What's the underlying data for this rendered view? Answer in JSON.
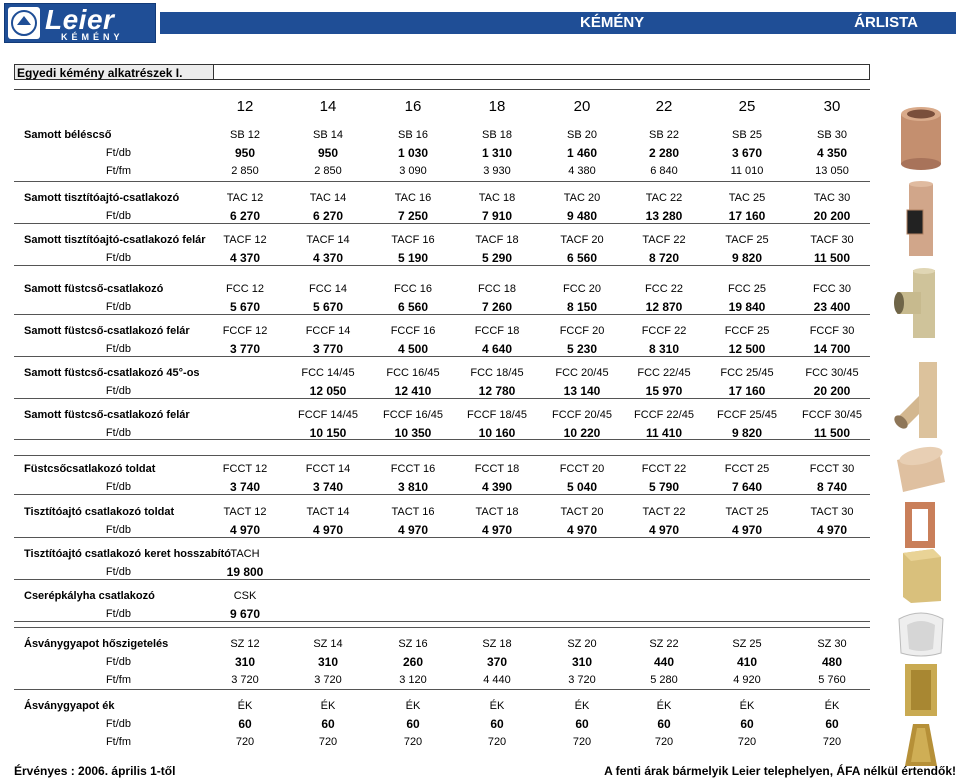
{
  "header": {
    "logo_text": "Leier",
    "logo_sub": "KÉMÉNY",
    "center_title": "KÉMÉNY",
    "right_title": "ÁRLISTA"
  },
  "section_title": "Egyedi kémény alkatrészek I.",
  "sizes": [
    "12",
    "14",
    "16",
    "18",
    "20",
    "22",
    "25",
    "30"
  ],
  "rows": [
    {
      "label": "Samott béléscső",
      "codes": [
        "SB 12",
        "SB 14",
        "SB 16",
        "SB 18",
        "SB 20",
        "SB 22",
        "SB 25",
        "SB 30"
      ],
      "unit1": "Ft/db",
      "prices1": [
        "950",
        "950",
        "1 030",
        "1 310",
        "1 460",
        "2 280",
        "3 670",
        "4 350"
      ],
      "unit2": "Ft/fm",
      "prices2": [
        "2 850",
        "2 850",
        "3 090",
        "3 930",
        "4 380",
        "6 840",
        "11 010",
        "13 050"
      ]
    },
    {
      "label": "Samott tisztítóajtó-csatlakozó",
      "codes": [
        "TAC 12",
        "TAC 14",
        "TAC 16",
        "TAC 18",
        "TAC 20",
        "TAC 22",
        "TAC 25",
        "TAC 30"
      ],
      "unit1": "Ft/db",
      "prices1": [
        "6 270",
        "6 270",
        "7 250",
        "7 910",
        "9 480",
        "13 280",
        "17 160",
        "20 200"
      ]
    },
    {
      "label": "Samott tisztítóajtó-csatlakozó felár",
      "codes": [
        "TACF 12",
        "TACF 14",
        "TACF 16",
        "TACF 18",
        "TACF 20",
        "TACF 22",
        "TACF 25",
        "TACF 30"
      ],
      "unit1": "Ft/db",
      "prices1": [
        "4 370",
        "4 370",
        "5 190",
        "5 290",
        "6 560",
        "8 720",
        "9 820",
        "11 500"
      ]
    },
    {
      "label": "Samott füstcső-csatlakozó",
      "codes": [
        "FCC 12",
        "FCC 14",
        "FCC 16",
        "FCC 18",
        "FCC 20",
        "FCC 22",
        "FCC 25",
        "FCC 30"
      ],
      "unit1": "Ft/db",
      "prices1": [
        "5 670",
        "5 670",
        "6 560",
        "7 260",
        "8 150",
        "12 870",
        "19 840",
        "23 400"
      ]
    },
    {
      "label": "Samott füstcső-csatlakozó felár",
      "codes": [
        "FCCF 12",
        "FCCF 14",
        "FCCF 16",
        "FCCF 18",
        "FCCF 20",
        "FCCF 22",
        "FCCF 25",
        "FCCF 30"
      ],
      "unit1": "Ft/db",
      "prices1": [
        "3 770",
        "3 770",
        "4 500",
        "4 640",
        "5 230",
        "8 310",
        "12 500",
        "14 700"
      ]
    },
    {
      "label": "Samott füstcső-csatlakozó 45°-os",
      "codes": [
        "",
        "FCC 14/45",
        "FCC 16/45",
        "FCC 18/45",
        "FCC 20/45",
        "FCC 22/45",
        "FCC 25/45",
        "FCC 30/45"
      ],
      "unit1": "Ft/db",
      "prices1": [
        "",
        "12 050",
        "12 410",
        "12 780",
        "13 140",
        "15 970",
        "17 160",
        "20 200"
      ]
    },
    {
      "label": "Samott füstcső-csatlakozó felár",
      "codes": [
        "",
        "FCCF 14/45",
        "FCCF 16/45",
        "FCCF 18/45",
        "FCCF 20/45",
        "FCCF 22/45",
        "FCCF 25/45",
        "FCCF 30/45"
      ],
      "unit1": "Ft/db",
      "prices1": [
        "",
        "10 150",
        "10 350",
        "10 160",
        "10 220",
        "11 410",
        "9 820",
        "11 500"
      ]
    },
    {
      "label": "Füstcsőcsatlakozó toldat",
      "codes": [
        "FCCT 12",
        "FCCT 14",
        "FCCT 16",
        "FCCT 18",
        "FCCT 20",
        "FCCT 22",
        "FCCT 25",
        "FCCT 30"
      ],
      "unit1": "Ft/db",
      "prices1": [
        "3 740",
        "3 740",
        "3 810",
        "4 390",
        "5 040",
        "5 790",
        "7 640",
        "8 740"
      ]
    },
    {
      "label": "Tisztítóajtó csatlakozó toldat",
      "codes": [
        "TACT 12",
        "TACT 14",
        "TACT 16",
        "TACT 18",
        "TACT 20",
        "TACT 22",
        "TACT 25",
        "TACT 30"
      ],
      "unit1": "Ft/db",
      "prices1": [
        "4 970",
        "4 970",
        "4 970",
        "4 970",
        "4 970",
        "4 970",
        "4 970",
        "4 970"
      ]
    },
    {
      "label": "Tisztítóajtó csatlakozó keret hosszabító",
      "codes": [
        "TACH",
        "",
        "",
        "",
        "",
        "",
        "",
        ""
      ],
      "unit1": "Ft/db",
      "prices1": [
        "19 800",
        "",
        "",
        "",
        "",
        "",
        "",
        ""
      ]
    },
    {
      "label": "Cserépkályha csatlakozó",
      "codes": [
        "CSK",
        "",
        "",
        "",
        "",
        "",
        "",
        ""
      ],
      "unit1": "Ft/db",
      "prices1": [
        "9 670",
        "",
        "",
        "",
        "",
        "",
        "",
        ""
      ]
    },
    {
      "label": "Ásványgyapot hőszigetelés",
      "codes": [
        "SZ 12",
        "SZ 14",
        "SZ 16",
        "SZ 18",
        "SZ 20",
        "SZ 22",
        "SZ 25",
        "SZ 30"
      ],
      "unit1": "Ft/db",
      "prices1": [
        "310",
        "310",
        "260",
        "370",
        "310",
        "440",
        "410",
        "480"
      ],
      "unit2": "Ft/fm",
      "prices2": [
        "3 720",
        "3 720",
        "3 120",
        "4 440",
        "3 720",
        "5 280",
        "4 920",
        "5 760"
      ]
    },
    {
      "label": "Ásványgyapot ék",
      "codes": [
        "ÉK",
        "ÉK",
        "ÉK",
        "ÉK",
        "ÉK",
        "ÉK",
        "ÉK",
        "ÉK"
      ],
      "unit1": "Ft/db",
      "prices1": [
        "60",
        "60",
        "60",
        "60",
        "60",
        "60",
        "60",
        "60"
      ],
      "unit2": "Ft/fm",
      "prices2": [
        "720",
        "720",
        "720",
        "720",
        "720",
        "720",
        "720",
        "720"
      ]
    }
  ],
  "footer": {
    "left": "Érvényes : 2006. április 1-től",
    "right": "A fenti árak bármelyik Leier telephelyen, ÁFA nélkül értendők!"
  }
}
